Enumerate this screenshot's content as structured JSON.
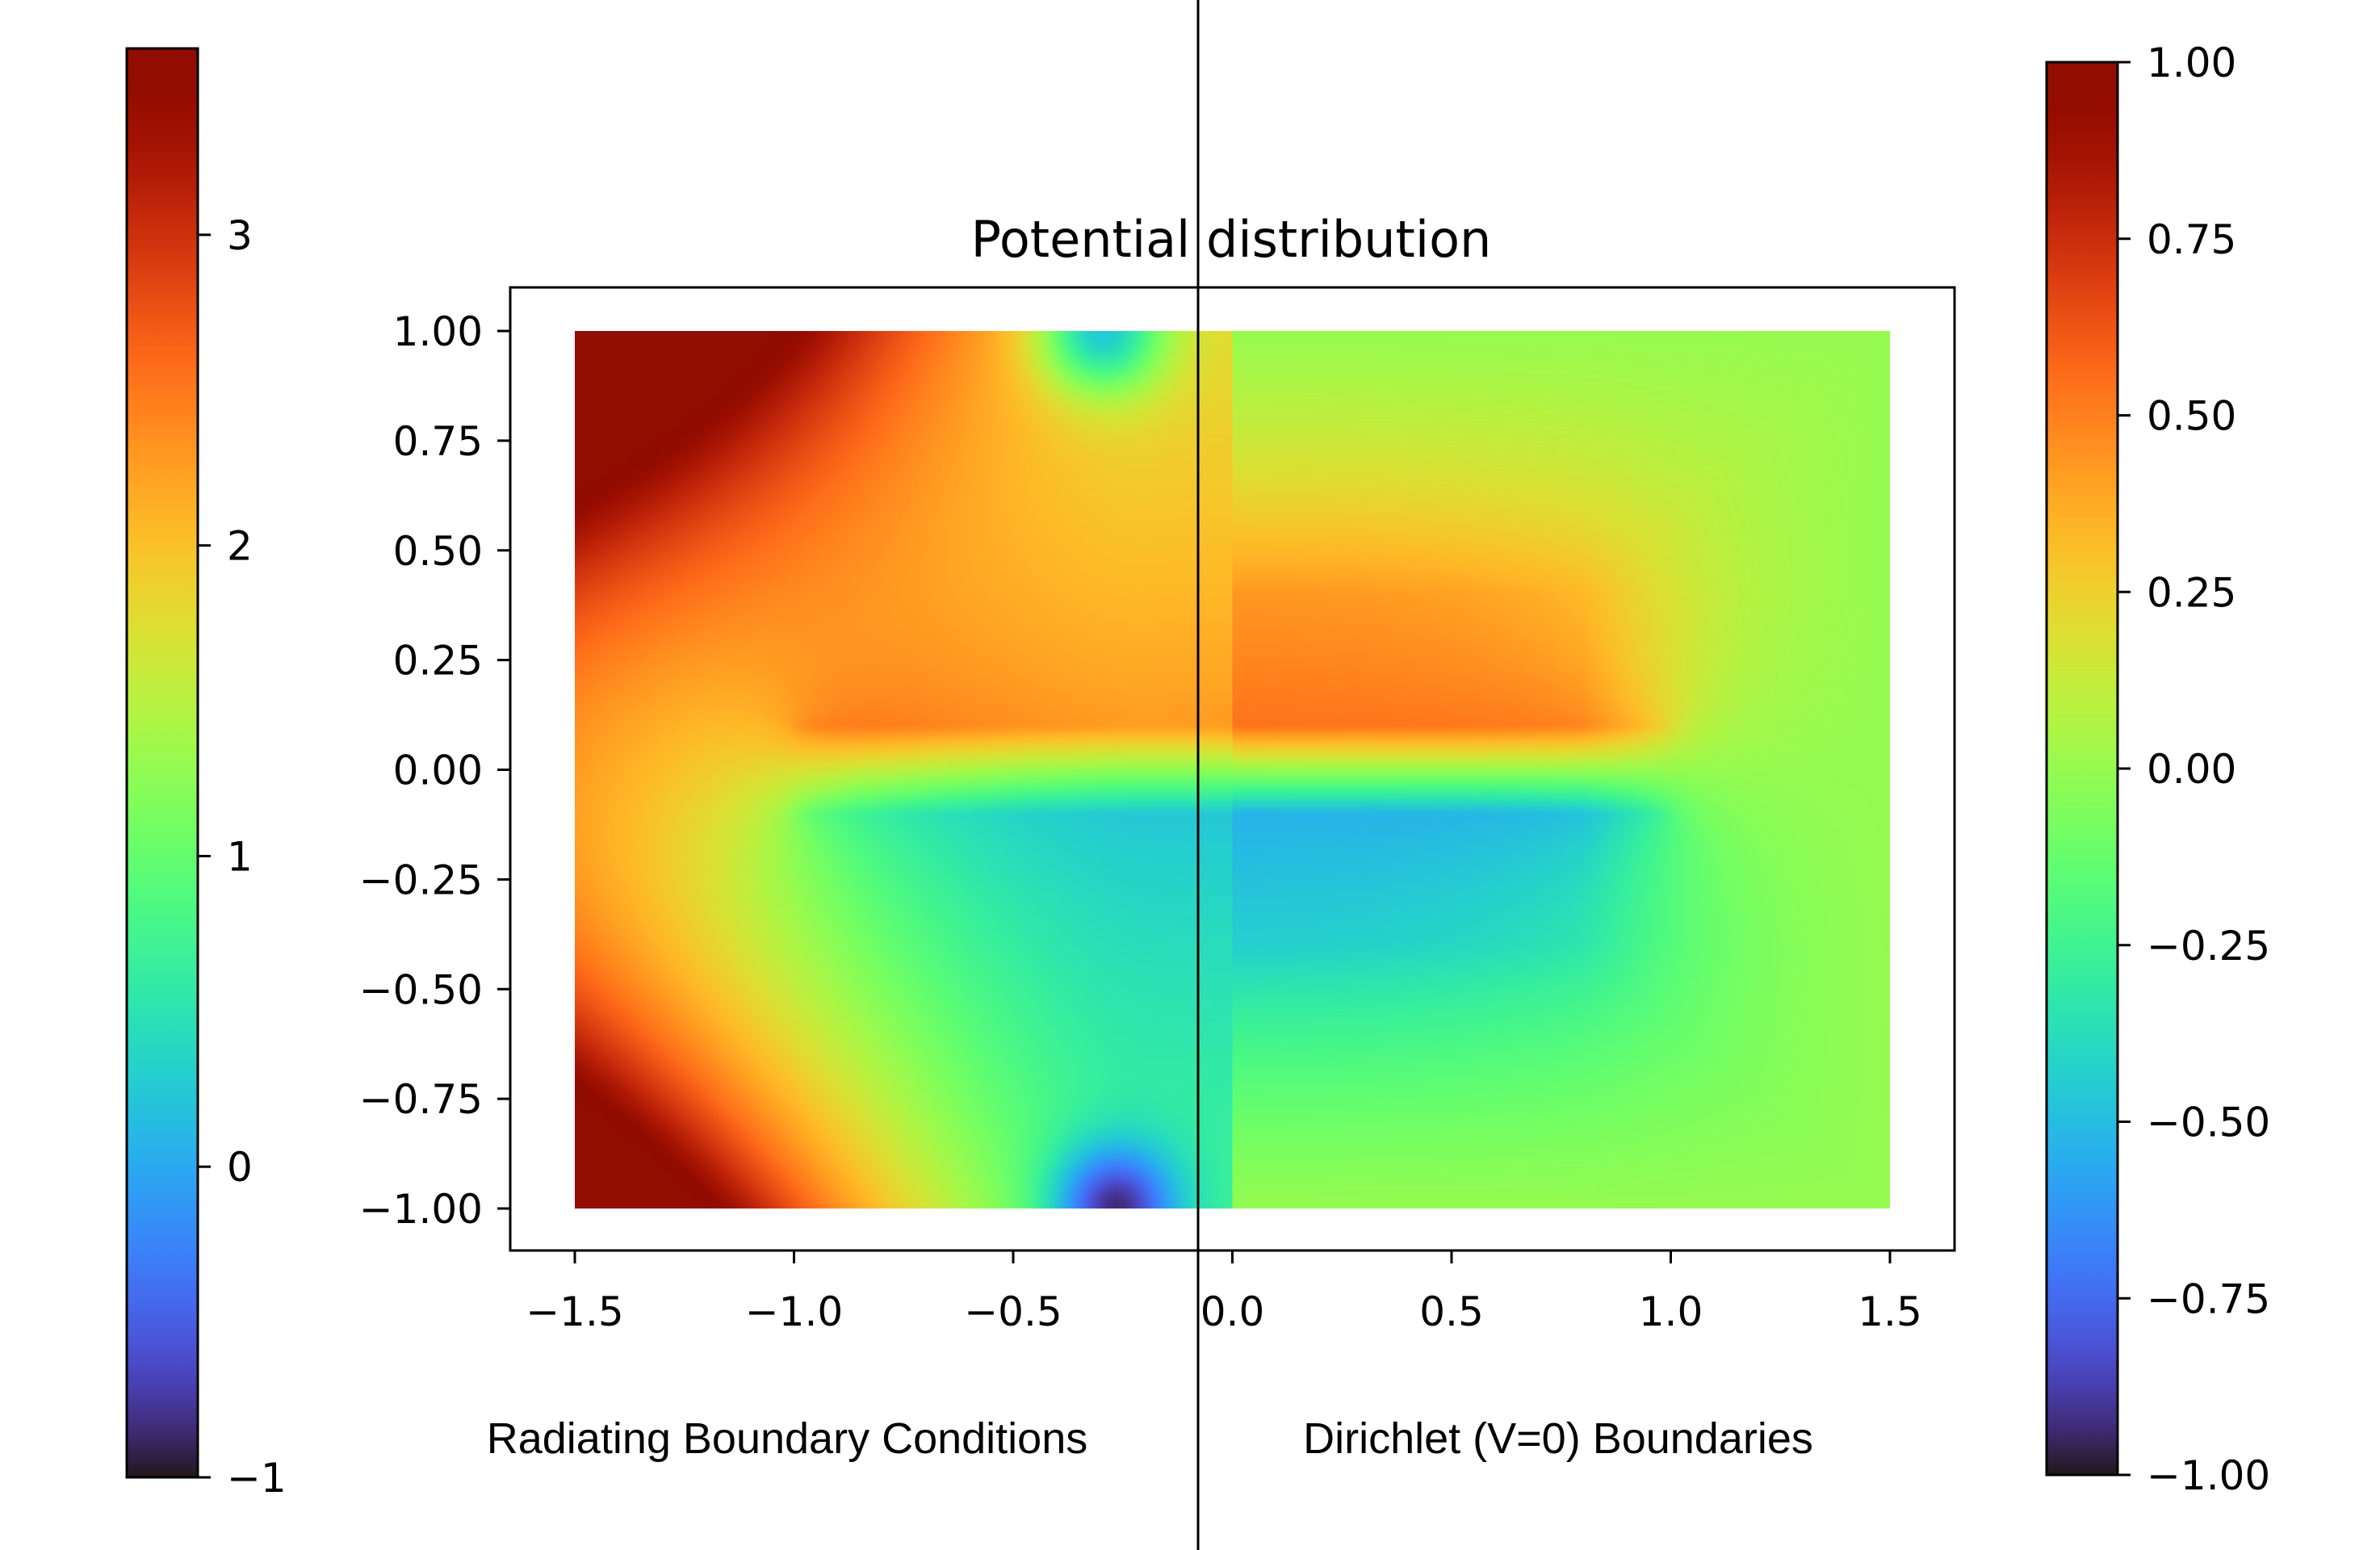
{
  "chart_data": {
    "type": "heatmap",
    "title": "Potential distribution",
    "x_range": [
      -1.5,
      1.5
    ],
    "y_range": [
      -1.0,
      1.0
    ],
    "x_ticks": [
      -1.5,
      -1.0,
      -0.5,
      0.0,
      0.5,
      1.0,
      1.5
    ],
    "x_tick_labels": [
      "−1.5",
      "−1.0",
      "−0.5",
      "0.0",
      "0.5",
      "1.0",
      "1.5"
    ],
    "y_ticks": [
      1.0,
      0.75,
      0.5,
      0.25,
      0.0,
      -0.25,
      -0.5,
      -0.75,
      -1.0
    ],
    "y_tick_labels": [
      "1.00",
      "0.75",
      "0.50",
      "0.25",
      "0.00",
      "−0.25",
      "−0.50",
      "−0.75",
      "−1.00"
    ],
    "colormap": "turbo",
    "plates": [
      {
        "y": 0.1,
        "x_start": -1.0,
        "x_end": 1.0,
        "voltage": 1.0
      },
      {
        "y": -0.1,
        "x_start": -1.0,
        "x_end": 1.0,
        "voltage": -1.0
      }
    ],
    "split_x": 0.0,
    "left_panel": {
      "caption": "Radiating Boundary Conditions",
      "colorbar": {
        "range": [
          -1,
          3.6
        ],
        "ticks": [
          -1,
          0,
          1,
          2,
          3
        ],
        "tick_labels": [
          "−1",
          "0",
          "1",
          "2",
          "3"
        ]
      }
    },
    "right_panel": {
      "caption": "Dirichlet (V=0) Boundaries",
      "colorbar": {
        "range": [
          -1.0,
          1.0
        ],
        "ticks": [
          1.0,
          0.75,
          0.5,
          0.25,
          0.0,
          -0.25,
          -0.5,
          -0.75,
          -1.0
        ],
        "tick_labels": [
          "1.00",
          "0.75",
          "0.50",
          "0.25",
          "0.00",
          "−0.25",
          "−0.50",
          "−0.75",
          "−1.00"
        ]
      }
    }
  }
}
